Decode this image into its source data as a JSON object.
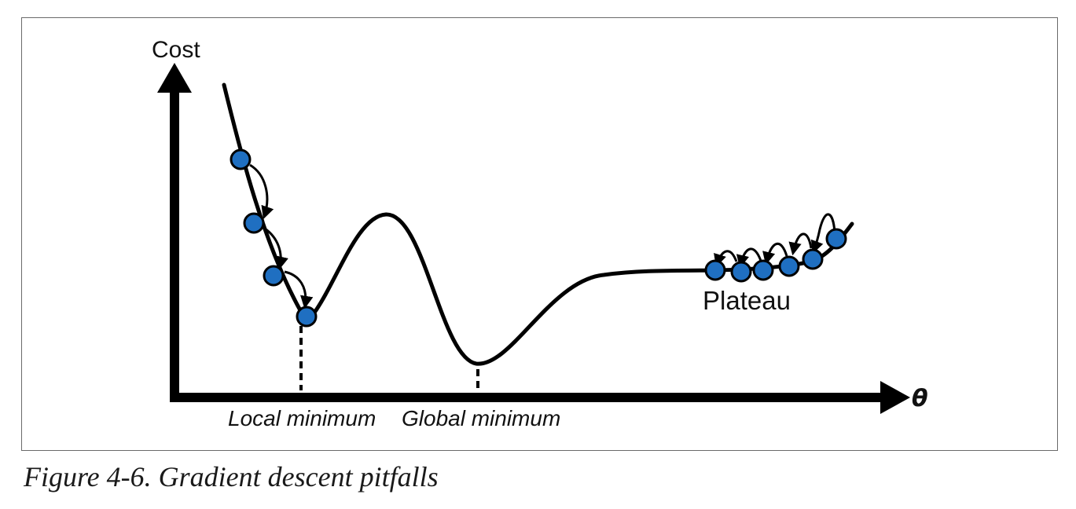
{
  "diagram": {
    "y_axis_label": "Cost",
    "x_axis_label": "θ",
    "annotations": {
      "local_minimum": "Local minimum",
      "global_minimum": "Global minimum",
      "plateau": "Plateau"
    },
    "colors": {
      "point_fill": "#1f6fc1",
      "stroke": "#000000"
    }
  },
  "caption": "Figure 4-6. Gradient descent pitfalls"
}
